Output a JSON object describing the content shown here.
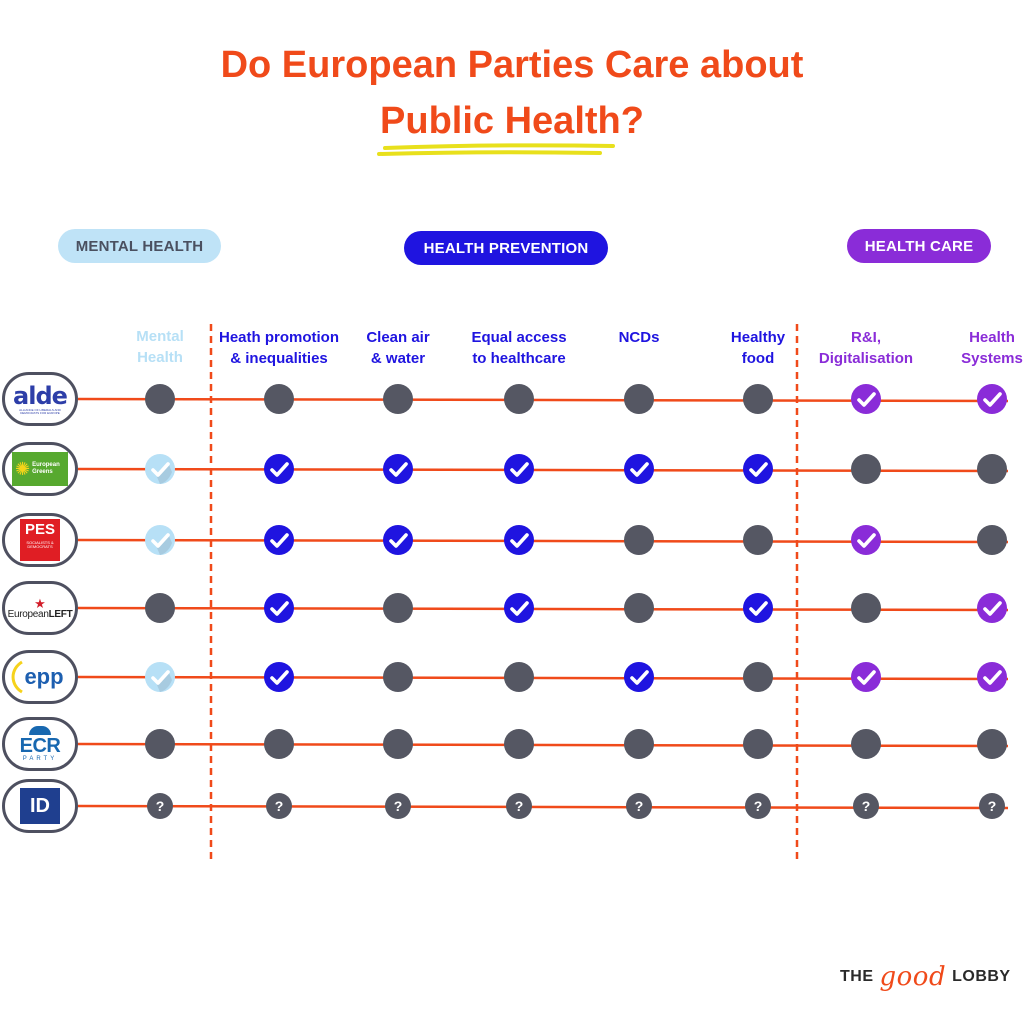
{
  "title": {
    "line1": "Do European Parties Care about",
    "line2": "Public Health?"
  },
  "groups": {
    "mental": "MENTAL HEALTH",
    "prevention": "HEALTH PREVENTION",
    "care": "HEALTH  CARE"
  },
  "colors": {
    "orange": "#f04a1a",
    "mental": "#b7e0f6",
    "prevention": "#1f14e0",
    "care": "#8a2cd8",
    "no": "#555763"
  },
  "columns": [
    {
      "key": "mental",
      "line1": "Mental",
      "line2": "Health",
      "group": "mental"
    },
    {
      "key": "promotion",
      "line1": "Heath promotion",
      "line2": "& inequalities",
      "group": "prevention"
    },
    {
      "key": "air",
      "line1": "Clean air",
      "line2": "& water",
      "group": "prevention"
    },
    {
      "key": "access",
      "line1": "Equal access",
      "line2": "to healthcare",
      "group": "prevention"
    },
    {
      "key": "ncds",
      "line1": "NCDs",
      "line2": "",
      "group": "prevention"
    },
    {
      "key": "food",
      "line1": "Healthy",
      "line2": "food",
      "group": "prevention"
    },
    {
      "key": "ri",
      "line1": "R&I,",
      "line2": "Digitalisation",
      "group": "care"
    },
    {
      "key": "systems",
      "line1": "Health",
      "line2": "Systems",
      "group": "care"
    }
  ],
  "parties": [
    {
      "logo": "alde-logo",
      "label": "alde",
      "sublabel": "ALLIANCE OF LIBERALS AND DEMOCRATS FOR EUROPE",
      "values": [
        "no",
        "no",
        "no",
        "no",
        "no",
        "no",
        "yes",
        "yes"
      ]
    },
    {
      "logo": "european-greens-logo",
      "label": "European Greens",
      "sublabel": "",
      "values": [
        "yes",
        "yes",
        "yes",
        "yes",
        "yes",
        "yes",
        "no",
        "no"
      ]
    },
    {
      "logo": "pes-logo",
      "label": "PES",
      "sublabel": "SOCIALISTS & DEMOCRATS",
      "values": [
        "yes",
        "yes",
        "yes",
        "yes",
        "no",
        "no",
        "yes",
        "no"
      ]
    },
    {
      "logo": "european-left-logo",
      "label": "European",
      "sublabel": "LEFT",
      "values": [
        "no",
        "yes",
        "no",
        "yes",
        "no",
        "yes",
        "no",
        "yes"
      ]
    },
    {
      "logo": "epp-logo",
      "label": "epp",
      "sublabel": "",
      "values": [
        "yes",
        "yes",
        "no",
        "no",
        "yes",
        "no",
        "yes",
        "yes"
      ]
    },
    {
      "logo": "ecr-party-logo",
      "label": "ECR",
      "sublabel": "PARTY",
      "values": [
        "no",
        "no",
        "no",
        "no",
        "no",
        "no",
        "no",
        "no"
      ]
    },
    {
      "logo": "id-party-logo",
      "label": "ID",
      "sublabel": "",
      "values": [
        "unknown",
        "unknown",
        "unknown",
        "unknown",
        "unknown",
        "unknown",
        "unknown",
        "unknown"
      ]
    }
  ],
  "unknown_mark": "?",
  "brand": {
    "the": "THE",
    "good": "good",
    "lobby": "LOBBY"
  }
}
